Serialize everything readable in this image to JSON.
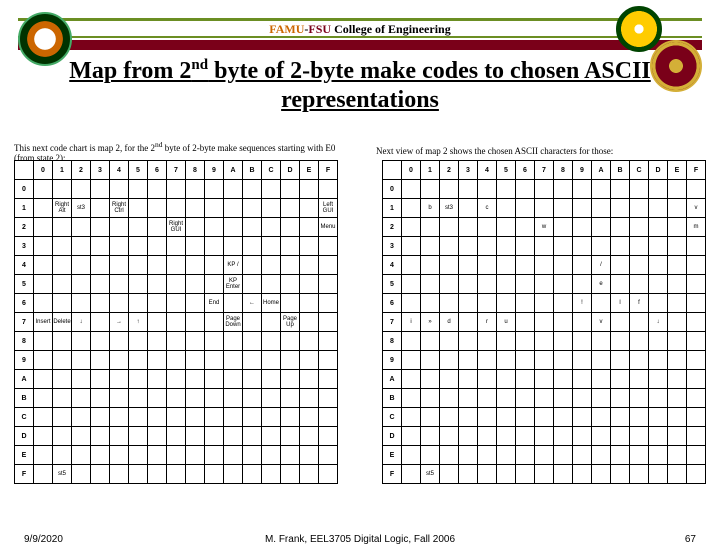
{
  "header": {
    "org_left": "FAMU",
    "dash": "-",
    "org_right": "FSU",
    "org_rest": " College of Engineering"
  },
  "title": {
    "line": "Map from 2",
    "sup": "nd",
    "line2": " byte of 2-byte make codes to chosen ASCII representations"
  },
  "captions": {
    "left_a": "This next code chart is map 2, for the 2",
    "left_sup": "nd",
    "left_b": " byte of 2-byte make sequences starting with E0",
    "left_c": "(from state 2):",
    "right": "Next view of map 2 shows the chosen ASCII characters for those:"
  },
  "grid": {
    "cols": [
      "0",
      "1",
      "2",
      "3",
      "4",
      "5",
      "6",
      "7",
      "8",
      "9",
      "A",
      "B",
      "C",
      "D",
      "E",
      "F"
    ],
    "rows": [
      "0",
      "1",
      "2",
      "3",
      "4",
      "5",
      "6",
      "7",
      "8",
      "9",
      "A",
      "B",
      "C",
      "D",
      "E",
      "F"
    ]
  },
  "cells_left": {
    "1_1": "Right Alt",
    "1_2": "st3",
    "1_4": "Right Ctrl",
    "1_F": "Left GUI",
    "2_7": "Right GUI",
    "2_F": "Menu",
    "4_A": "KP /",
    "5_A": "KP Enter",
    "6_9": "End",
    "6_B": "←",
    "6_C": "Home",
    "7_0": "Insert",
    "7_1": "Delete",
    "7_2": "↓",
    "7_4": "→",
    "7_5": "↑",
    "7_A": "Page Down",
    "7_D": "Page Up",
    "F_1": "st5"
  },
  "cells_right": {
    "1_1": "b",
    "1_2": "st3",
    "1_4": "c",
    "1_F": "v",
    "2_7": "w",
    "2_F": "m",
    "4_A": "/",
    "5_A": "e",
    "6_9": "!",
    "6_B": "l",
    "6_C": "f",
    "7_0": "i",
    "7_1": "»",
    "7_2": "d",
    "7_4": "r",
    "7_5": "u",
    "7_A": "v",
    "7_D": "↓",
    "F_1": "st5"
  },
  "footer": {
    "date": "9/9/2020",
    "course": "M. Frank, EEL3705 Digital Logic, Fall 2006",
    "page": "67"
  }
}
